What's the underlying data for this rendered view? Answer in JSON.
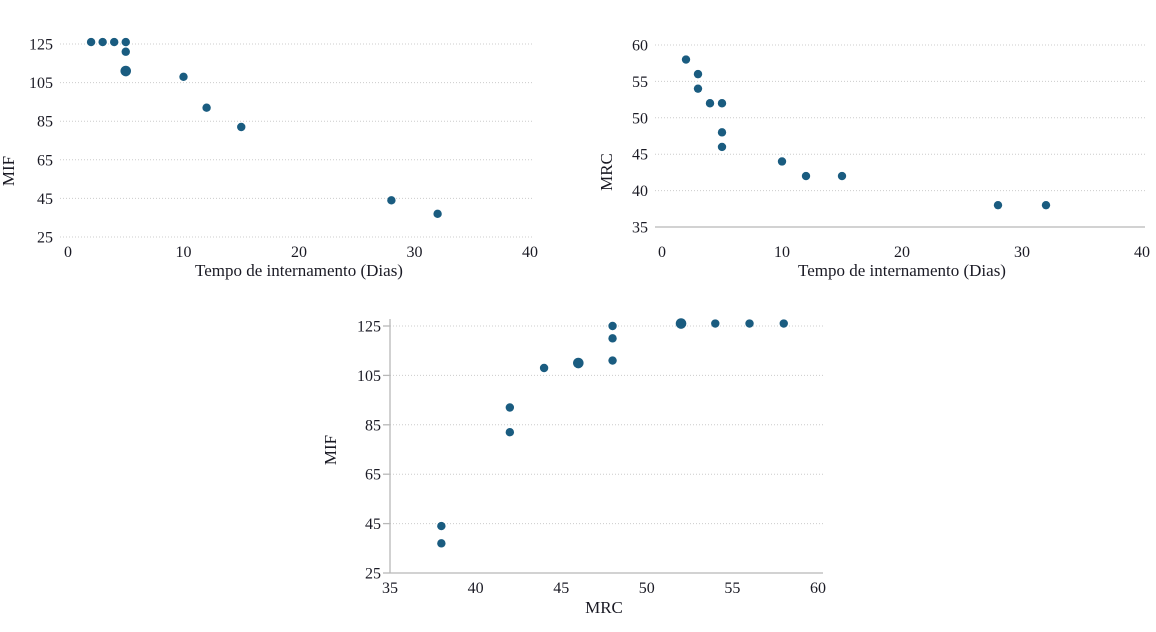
{
  "figure": {
    "background": "#ffffff",
    "description": "Three scatter plots: MIF vs length of stay, MRC vs length of stay, and MIF vs MRC"
  },
  "colors": {
    "dot": "#1a5c80",
    "gridline": "#cccccc",
    "axis_line": "#b8b8b8",
    "text": "#1a1a24"
  },
  "chart_data": [
    {
      "id": "mif-vs-tempo",
      "type": "scatter",
      "title": "",
      "xlabel": "Tempo de internamento (Dias)",
      "ylabel": "MIF",
      "x_ticks": [
        0,
        10,
        20,
        30,
        40
      ],
      "y_ticks": [
        25,
        45,
        65,
        85,
        105,
        125
      ],
      "xlim": [
        0,
        40
      ],
      "ylim": [
        25,
        125
      ],
      "grid": "horizontal-dotted",
      "legend": "none",
      "points": [
        [
          2,
          126
        ],
        [
          3,
          126
        ],
        [
          4,
          126
        ],
        [
          5,
          126
        ],
        [
          5,
          121
        ],
        [
          5,
          111,
          "large"
        ],
        [
          10,
          108
        ],
        [
          12,
          92
        ],
        [
          15,
          82
        ],
        [
          28,
          44
        ],
        [
          32,
          37
        ]
      ]
    },
    {
      "id": "mrc-vs-tempo",
      "type": "scatter",
      "title": "",
      "xlabel": "Tempo de internamento (Dias)",
      "ylabel": "MRC",
      "x_ticks": [
        0,
        10,
        20,
        30,
        40
      ],
      "y_ticks": [
        35,
        40,
        45,
        50,
        55,
        60
      ],
      "xlim": [
        0,
        40
      ],
      "ylim": [
        35,
        60
      ],
      "grid": "horizontal-dotted",
      "legend": "none",
      "points": [
        [
          2,
          58
        ],
        [
          3,
          56
        ],
        [
          3,
          54
        ],
        [
          4,
          52
        ],
        [
          5,
          52
        ],
        [
          5,
          48
        ],
        [
          5,
          46
        ],
        [
          10,
          44
        ],
        [
          12,
          42
        ],
        [
          15,
          42
        ],
        [
          28,
          38
        ],
        [
          32,
          38
        ]
      ]
    },
    {
      "id": "mif-vs-mrc",
      "type": "scatter",
      "title": "",
      "xlabel": "MRC",
      "ylabel": "MIF",
      "x_ticks": [
        35,
        40,
        45,
        50,
        55,
        60
      ],
      "y_ticks": [
        25,
        45,
        65,
        85,
        105,
        125
      ],
      "xlim": [
        35,
        60
      ],
      "ylim": [
        25,
        125
      ],
      "grid": "horizontal-dotted",
      "legend": "none",
      "points": [
        [
          38,
          44
        ],
        [
          38,
          37
        ],
        [
          42,
          92
        ],
        [
          42,
          82
        ],
        [
          44,
          108
        ],
        [
          46,
          110,
          "large"
        ],
        [
          48,
          125
        ],
        [
          48,
          120
        ],
        [
          48,
          111
        ],
        [
          52,
          126,
          "large"
        ],
        [
          54,
          126
        ],
        [
          56,
          126
        ],
        [
          58,
          126
        ]
      ]
    }
  ]
}
